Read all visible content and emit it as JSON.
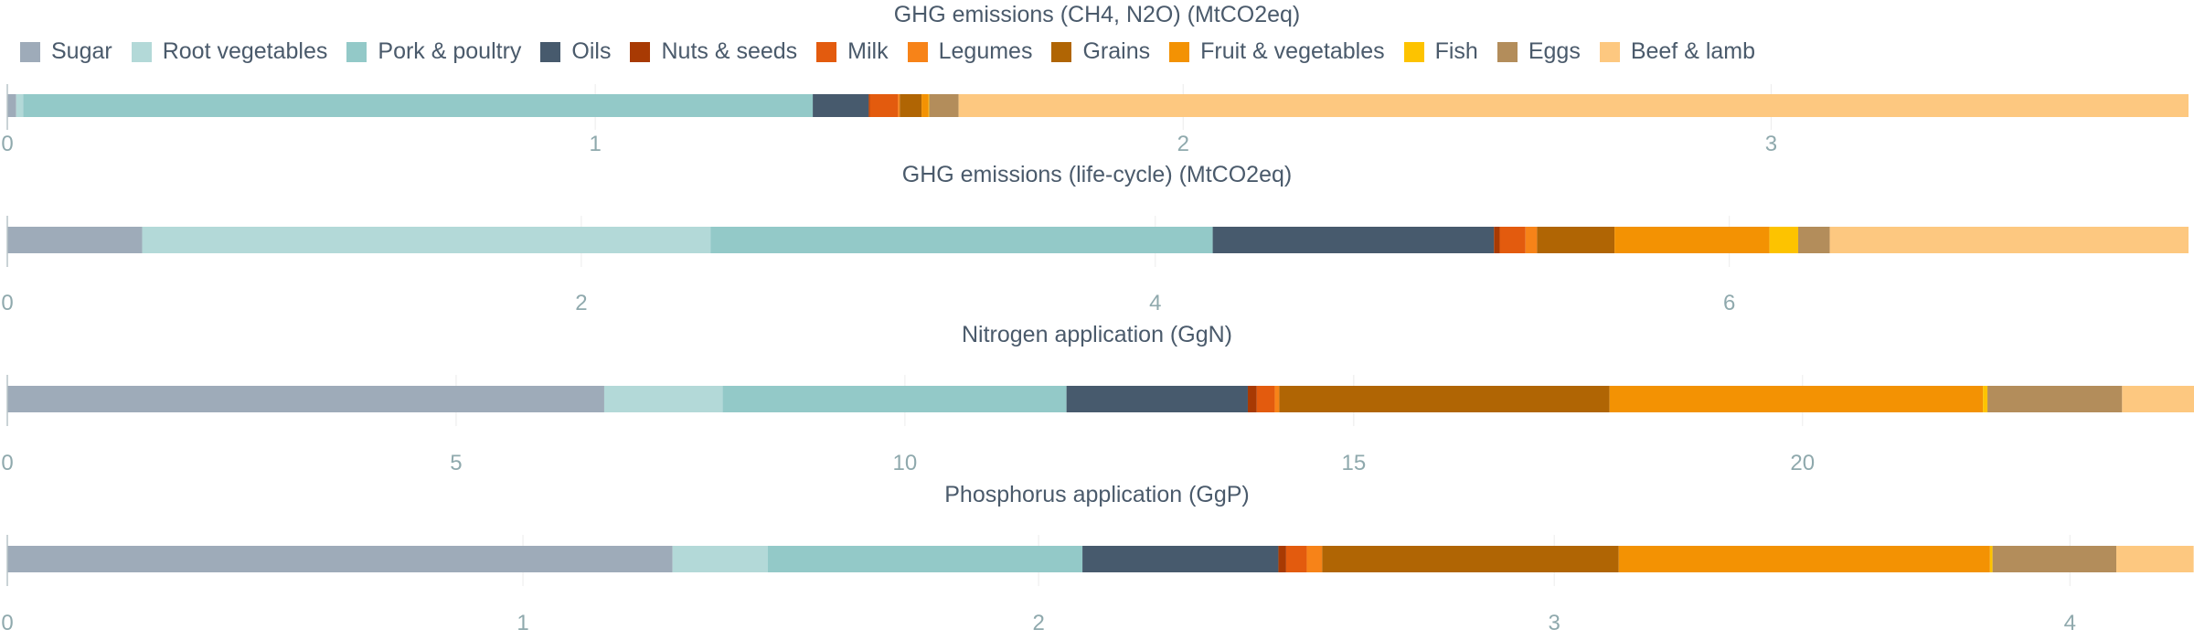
{
  "categories": [
    "Sugar",
    "Root vegetables",
    "Pork & poultry",
    "Oils",
    "Nuts & seeds",
    "Milk",
    "Legumes",
    "Grains",
    "Fruit & vegetables",
    "Fish",
    "Eggs",
    "Beef & lamb"
  ],
  "colors": {
    "Sugar": "#9eabb9",
    "Root vegetables": "#b3d9d8",
    "Pork & poultry": "#93c9c8",
    "Oils": "#475a6d",
    "Nuts & seeds": "#a83a03",
    "Milk": "#e35b0e",
    "Legumes": "#f78318",
    "Grains": "#b06504",
    "Fruit & vegetables": "#f39203",
    "Fish": "#fdc300",
    "Eggs": "#b38d5b",
    "Beef & lamb": "#fdc880"
  },
  "chart_data": [
    {
      "type": "bar",
      "orientation": "horizontal",
      "stacked": true,
      "title": "GHG emissions (CH4, N2O) (MtCO2eq)",
      "xlim": [
        0,
        3.71
      ],
      "ticks": [
        0,
        1,
        2,
        3
      ],
      "tick_labels": [
        "0",
        "1",
        "2",
        "3"
      ],
      "values": [
        0.015,
        0.012,
        1.343,
        0.095,
        0.002,
        0.048,
        0.003,
        0.037,
        0.012,
        0.001,
        0.05,
        2.092
      ]
    },
    {
      "type": "bar",
      "orientation": "horizontal",
      "stacked": true,
      "title": "GHG emissions (life-cycle) (MtCO2eq)",
      "xlim": [
        0,
        7.6
      ],
      "ticks": [
        0,
        2,
        4,
        6
      ],
      "tick_labels": [
        "0",
        "2",
        "4",
        "6"
      ],
      "values": [
        0.47,
        1.98,
        1.75,
        0.98,
        0.02,
        0.09,
        0.04,
        0.27,
        0.54,
        0.1,
        0.11,
        1.25
      ]
    },
    {
      "type": "bar",
      "orientation": "horizontal",
      "stacked": true,
      "title": "Nitrogen application (GgN)",
      "xlim": [
        0,
        24.3
      ],
      "ticks": [
        0,
        5,
        10,
        15,
        20
      ],
      "tick_labels": [
        "0",
        "5",
        "10",
        "15",
        "20"
      ],
      "values": [
        6.65,
        1.32,
        3.83,
        2.02,
        0.1,
        0.2,
        0.05,
        3.68,
        4.16,
        0.05,
        1.5,
        0.84
      ]
    },
    {
      "type": "bar",
      "orientation": "horizontal",
      "stacked": true,
      "title": "Phosphorus application (GgP)",
      "xlim": [
        0,
        4.23
      ],
      "ticks": [
        0,
        1,
        2,
        3,
        4
      ],
      "tick_labels": [
        "0",
        "1",
        "2",
        "3",
        "4"
      ],
      "values": [
        1.29,
        0.185,
        0.61,
        0.38,
        0.015,
        0.04,
        0.03,
        0.575,
        0.72,
        0.005,
        0.24,
        0.15
      ]
    }
  ]
}
